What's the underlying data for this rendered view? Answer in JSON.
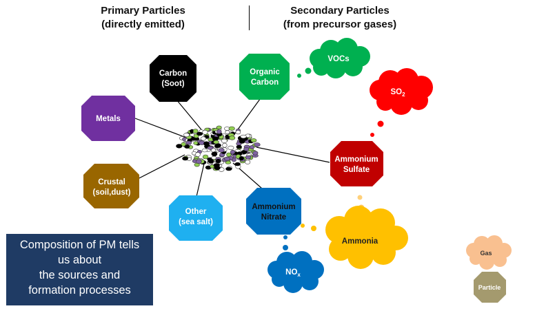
{
  "header": {
    "primary_title": "Primary Particles",
    "primary_subtitle": "(directly emitted)",
    "secondary_title": "Secondary Particles",
    "secondary_subtitle": "(from precursor gases)"
  },
  "primary_nodes": [
    {
      "line1": "Carbon",
      "line2": "(Soot)",
      "color": "#000000",
      "text_color": "#ffffff"
    },
    {
      "line1": "Metals",
      "line2": "",
      "color": "#7030a0",
      "text_color": "#ffffff"
    },
    {
      "line1": "Crustal",
      "line2": "(soil,dust)",
      "color": "#996600",
      "text_color": "#ffffff"
    },
    {
      "line1": "Other",
      "line2": "(sea salt)",
      "color": "#1fb0f0",
      "text_color": "#ffffff"
    }
  ],
  "secondary_nodes": [
    {
      "line1": "Organic",
      "line2": "Carbon",
      "color": "#00b050",
      "text_color": "#ffffff"
    },
    {
      "line1": "Ammonium",
      "line2": "Sulfate",
      "color": "#c00000",
      "text_color": "#ffffff"
    },
    {
      "line1": "Ammonium",
      "line2": "Nitrate",
      "color": "#0070c0",
      "text_color": "#111111"
    }
  ],
  "gases": {
    "vocs": {
      "label": "VOCs",
      "color": "#00b050"
    },
    "so2": {
      "label": "SO",
      "sub": "2",
      "color": "#ff0000"
    },
    "ammonia": {
      "label": "Ammonia",
      "color": "#ffc000"
    },
    "nox": {
      "label": "NO",
      "sub": "x",
      "color": "#0070c0"
    }
  },
  "legend": {
    "gas_label": "Gas",
    "gas_color": "#f9c090",
    "particle_label": "Particle",
    "particle_color": "#a49a6e"
  },
  "composition_box": {
    "lines": [
      "Composition of PM tells",
      "us about",
      "the sources and",
      "formation processes"
    ],
    "color": "#1f3b64"
  },
  "cluster_colors": [
    "#000000",
    "#ffffff",
    "#92d050",
    "#8064a2"
  ]
}
